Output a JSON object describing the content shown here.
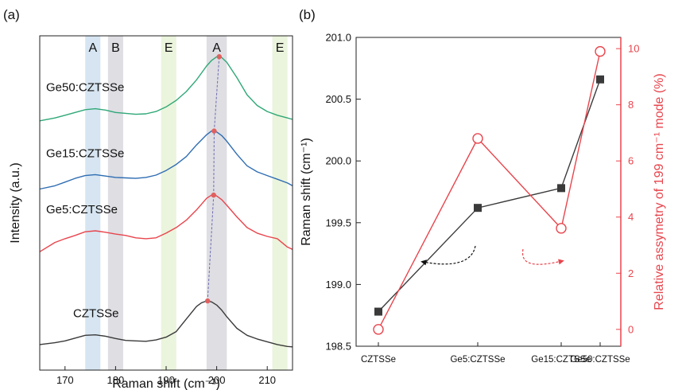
{
  "colors": {
    "black": "#3a3a3a",
    "red": "#e8454d",
    "blue": "#2f6db3",
    "green": "#2fa877",
    "band_A": "#cfe0ef",
    "band_B": "#d8d8de",
    "band_E": "#e7f2d6",
    "peak_marker": "#e06060"
  },
  "chart_data": [
    {
      "type": "line",
      "panel_label": "(a)",
      "xlabel": "Raman shift (cm⁻¹)",
      "ylabel": "Intensity (a.u.)",
      "xlim": [
        165,
        215
      ],
      "xticks": [
        "170",
        "180",
        "190",
        "200",
        "210"
      ],
      "bands": [
        {
          "label": "A",
          "from": 174,
          "to": 177,
          "color": "band_A"
        },
        {
          "label": "B",
          "from": 178.5,
          "to": 181.5,
          "color": "band_B"
        },
        {
          "label": "E",
          "from": 189,
          "to": 192,
          "color": "band_E"
        },
        {
          "label": "A",
          "from": 198,
          "to": 202,
          "color": "band_B"
        },
        {
          "label": "E",
          "from": 211,
          "to": 214,
          "color": "band_E"
        }
      ],
      "series": [
        {
          "name": "CZTSSe",
          "color": "black",
          "peak_x": 198.2,
          "x": [
            165,
            168,
            170,
            172,
            174,
            176,
            178,
            180,
            182,
            184,
            186,
            188,
            190,
            192,
            194,
            196,
            197,
            198,
            199,
            200,
            201,
            202,
            204,
            206,
            208,
            210,
            212,
            214,
            215
          ],
          "y": [
            0.1,
            0.14,
            0.18,
            0.24,
            0.3,
            0.31,
            0.28,
            0.23,
            0.19,
            0.18,
            0.17,
            0.2,
            0.26,
            0.38,
            0.65,
            0.92,
            1.0,
            1.04,
            1.02,
            0.95,
            0.84,
            0.7,
            0.45,
            0.3,
            0.22,
            0.16,
            0.1,
            0.06,
            0.05
          ]
        },
        {
          "name": "Ge5:CZTSSe",
          "color": "red",
          "peak_x": 199.4,
          "x": [
            165,
            168,
            170,
            172,
            174,
            176,
            178,
            180,
            182,
            184,
            186,
            188,
            190,
            192,
            194,
            196,
            198,
            199,
            200,
            201,
            202,
            204,
            206,
            208,
            210,
            212,
            214,
            215
          ],
          "y": [
            2.1,
            2.3,
            2.38,
            2.45,
            2.53,
            2.55,
            2.52,
            2.48,
            2.45,
            2.4,
            2.38,
            2.4,
            2.5,
            2.62,
            2.78,
            3.0,
            3.25,
            3.32,
            3.3,
            3.22,
            3.1,
            2.85,
            2.62,
            2.5,
            2.43,
            2.38,
            2.2,
            2.15
          ]
        },
        {
          "name": "Ge15:CZTSSe",
          "color": "blue",
          "peak_x": 199.5,
          "x": [
            165,
            168,
            170,
            172,
            174,
            176,
            178,
            180,
            182,
            184,
            186,
            188,
            190,
            192,
            194,
            196,
            198,
            199,
            200,
            201,
            202,
            204,
            206,
            208,
            210,
            212,
            214,
            215
          ],
          "y": [
            3.45,
            3.52,
            3.6,
            3.68,
            3.74,
            3.76,
            3.73,
            3.7,
            3.69,
            3.68,
            3.7,
            3.75,
            3.85,
            3.98,
            4.15,
            4.4,
            4.62,
            4.7,
            4.68,
            4.6,
            4.48,
            4.2,
            3.95,
            3.82,
            3.74,
            3.66,
            3.58,
            3.52
          ]
        },
        {
          "name": "Ge50:CZTSSe",
          "color": "green",
          "peak_x": 200.5,
          "x": [
            165,
            168,
            170,
            172,
            174,
            176,
            178,
            180,
            182,
            184,
            186,
            188,
            190,
            192,
            194,
            196,
            198,
            199,
            200,
            201,
            202,
            204,
            206,
            208,
            210,
            212,
            214,
            215
          ],
          "y": [
            4.92,
            4.98,
            5.04,
            5.1,
            5.16,
            5.18,
            5.15,
            5.1,
            5.08,
            5.06,
            5.07,
            5.12,
            5.22,
            5.36,
            5.55,
            5.8,
            6.1,
            6.22,
            6.3,
            6.28,
            6.18,
            5.85,
            5.48,
            5.25,
            5.12,
            5.04,
            4.98,
            4.95
          ]
        }
      ]
    },
    {
      "type": "line",
      "panel_label": "(b)",
      "categories": [
        "CZTSSe",
        "Ge5:CZTSSe",
        "Ge15:CZTSSe",
        "Ge50:CZTSSe"
      ],
      "ylabel": "Raman shift (cm⁻¹)",
      "ylim": [
        198.5,
        201.0
      ],
      "yticks": [
        "198.5",
        "199.0",
        "199.5",
        "200.0",
        "200.5",
        "201.0"
      ],
      "y2label": "Relative assymetry of 199 cm⁻¹ mode (%)",
      "y2lim": [
        -0.6,
        10.4
      ],
      "y2ticks": [
        "0",
        "2",
        "4",
        "6",
        "8",
        "10"
      ],
      "series": [
        {
          "color": "black",
          "axis": "left",
          "marker": "square",
          "values": [
            198.78,
            199.62,
            199.78,
            200.66
          ]
        },
        {
          "color": "red",
          "axis": "right",
          "marker": "open-circle",
          "values": [
            0.0,
            6.8,
            3.6,
            9.9
          ]
        }
      ]
    }
  ]
}
